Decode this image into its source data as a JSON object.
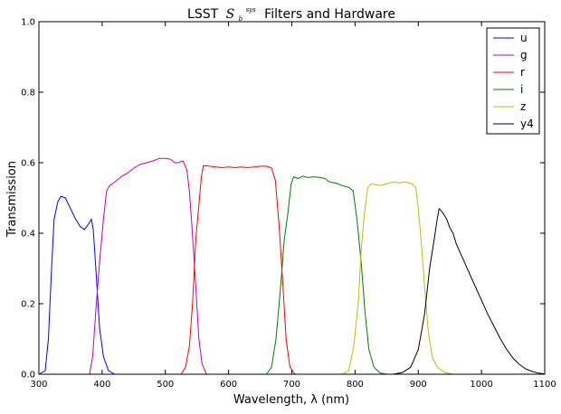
{
  "chart_data": {
    "type": "line",
    "title_prefix": "LSST",
    "title_symbol": "S",
    "title_sub": "b",
    "title_sup": "sys",
    "title_suffix": "Filters and Hardware",
    "xlabel": "Wavelength, λ (nm)",
    "ylabel": "Transmission",
    "xlim": [
      300,
      1100
    ],
    "ylim": [
      0,
      1.0
    ],
    "xticks": [
      "300",
      "400",
      "500",
      "600",
      "700",
      "800",
      "900",
      "1000",
      "1100"
    ],
    "yticks": [
      "0.0",
      "0.2",
      "0.4",
      "0.6",
      "0.8",
      "1.0"
    ],
    "grid": false,
    "legend_position": "top-right",
    "series": [
      {
        "name": "u",
        "color": "#0000ff",
        "points": [
          [
            300,
            0
          ],
          [
            310,
            0.01
          ],
          [
            315,
            0.1
          ],
          [
            320,
            0.3
          ],
          [
            324,
            0.44
          ],
          [
            330,
            0.49
          ],
          [
            335,
            0.505
          ],
          [
            342,
            0.5
          ],
          [
            350,
            0.47
          ],
          [
            358,
            0.44
          ],
          [
            365,
            0.42
          ],
          [
            372,
            0.41
          ],
          [
            378,
            0.425
          ],
          [
            383,
            0.44
          ],
          [
            386,
            0.41
          ],
          [
            390,
            0.3
          ],
          [
            396,
            0.13
          ],
          [
            402,
            0.05
          ],
          [
            410,
            0.01
          ],
          [
            420,
            0
          ],
          [
            1100,
            0
          ]
        ]
      },
      {
        "name": "g",
        "color": "#bf00bf",
        "points": [
          [
            300,
            0
          ],
          [
            380,
            0
          ],
          [
            385,
            0.05
          ],
          [
            390,
            0.18
          ],
          [
            396,
            0.32
          ],
          [
            402,
            0.44
          ],
          [
            407,
            0.52
          ],
          [
            412,
            0.535
          ],
          [
            420,
            0.545
          ],
          [
            430,
            0.56
          ],
          [
            440,
            0.57
          ],
          [
            450,
            0.585
          ],
          [
            460,
            0.595
          ],
          [
            470,
            0.6
          ],
          [
            480,
            0.605
          ],
          [
            490,
            0.612
          ],
          [
            500,
            0.612
          ],
          [
            508,
            0.61
          ],
          [
            515,
            0.6
          ],
          [
            520,
            0.6
          ],
          [
            528,
            0.605
          ],
          [
            534,
            0.58
          ],
          [
            538,
            0.52
          ],
          [
            542,
            0.42
          ],
          [
            548,
            0.25
          ],
          [
            553,
            0.1
          ],
          [
            558,
            0.03
          ],
          [
            565,
            0
          ],
          [
            1100,
            0
          ]
        ]
      },
      {
        "name": "r",
        "color": "#ff0000",
        "points": [
          [
            300,
            0
          ],
          [
            525,
            0
          ],
          [
            532,
            0.02
          ],
          [
            538,
            0.08
          ],
          [
            543,
            0.2
          ],
          [
            548,
            0.38
          ],
          [
            553,
            0.48
          ],
          [
            557,
            0.56
          ],
          [
            560,
            0.592
          ],
          [
            570,
            0.59
          ],
          [
            580,
            0.588
          ],
          [
            590,
            0.586
          ],
          [
            600,
            0.588
          ],
          [
            610,
            0.586
          ],
          [
            620,
            0.588
          ],
          [
            630,
            0.586
          ],
          [
            640,
            0.588
          ],
          [
            650,
            0.59
          ],
          [
            660,
            0.59
          ],
          [
            668,
            0.585
          ],
          [
            674,
            0.55
          ],
          [
            680,
            0.42
          ],
          [
            686,
            0.25
          ],
          [
            691,
            0.1
          ],
          [
            697,
            0.02
          ],
          [
            705,
            0
          ],
          [
            1100,
            0
          ]
        ]
      },
      {
        "name": "i",
        "color": "#008000",
        "points": [
          [
            300,
            0
          ],
          [
            660,
            0
          ],
          [
            668,
            0.02
          ],
          [
            675,
            0.1
          ],
          [
            682,
            0.24
          ],
          [
            688,
            0.38
          ],
          [
            694,
            0.46
          ],
          [
            699,
            0.54
          ],
          [
            703,
            0.56
          ],
          [
            710,
            0.555
          ],
          [
            718,
            0.562
          ],
          [
            725,
            0.558
          ],
          [
            735,
            0.56
          ],
          [
            745,
            0.558
          ],
          [
            752,
            0.555
          ],
          [
            760,
            0.545
          ],
          [
            770,
            0.542
          ],
          [
            780,
            0.535
          ],
          [
            790,
            0.53
          ],
          [
            797,
            0.52
          ],
          [
            803,
            0.44
          ],
          [
            810,
            0.31
          ],
          [
            816,
            0.17
          ],
          [
            822,
            0.07
          ],
          [
            830,
            0.02
          ],
          [
            840,
            0.003
          ],
          [
            850,
            0
          ],
          [
            1100,
            0
          ]
        ]
      },
      {
        "name": "z",
        "color": "#bfbf00",
        "points": [
          [
            300,
            0
          ],
          [
            780,
            0
          ],
          [
            790,
            0.01
          ],
          [
            798,
            0.08
          ],
          [
            805,
            0.2
          ],
          [
            810,
            0.36
          ],
          [
            815,
            0.46
          ],
          [
            820,
            0.53
          ],
          [
            826,
            0.54
          ],
          [
            840,
            0.535
          ],
          [
            850,
            0.54
          ],
          [
            860,
            0.545
          ],
          [
            870,
            0.543
          ],
          [
            880,
            0.545
          ],
          [
            890,
            0.54
          ],
          [
            896,
            0.53
          ],
          [
            900,
            0.47
          ],
          [
            905,
            0.37
          ],
          [
            910,
            0.25
          ],
          [
            916,
            0.12
          ],
          [
            922,
            0.05
          ],
          [
            930,
            0.02
          ],
          [
            942,
            0.005
          ],
          [
            955,
            0
          ],
          [
            1100,
            0
          ]
        ]
      },
      {
        "name": "y4",
        "color": "#000000",
        "points": [
          [
            300,
            0
          ],
          [
            860,
            0
          ],
          [
            875,
            0.005
          ],
          [
            888,
            0.02
          ],
          [
            900,
            0.07
          ],
          [
            910,
            0.17
          ],
          [
            918,
            0.3
          ],
          [
            925,
            0.38
          ],
          [
            930,
            0.44
          ],
          [
            933,
            0.47
          ],
          [
            938,
            0.46
          ],
          [
            945,
            0.44
          ],
          [
            950,
            0.415
          ],
          [
            955,
            0.4
          ],
          [
            960,
            0.37
          ],
          [
            970,
            0.33
          ],
          [
            980,
            0.29
          ],
          [
            990,
            0.25
          ],
          [
            1000,
            0.21
          ],
          [
            1010,
            0.17
          ],
          [
            1020,
            0.135
          ],
          [
            1030,
            0.1
          ],
          [
            1040,
            0.07
          ],
          [
            1050,
            0.045
          ],
          [
            1060,
            0.028
          ],
          [
            1070,
            0.015
          ],
          [
            1080,
            0.008
          ],
          [
            1090,
            0.003
          ],
          [
            1100,
            0.001
          ]
        ]
      }
    ]
  }
}
